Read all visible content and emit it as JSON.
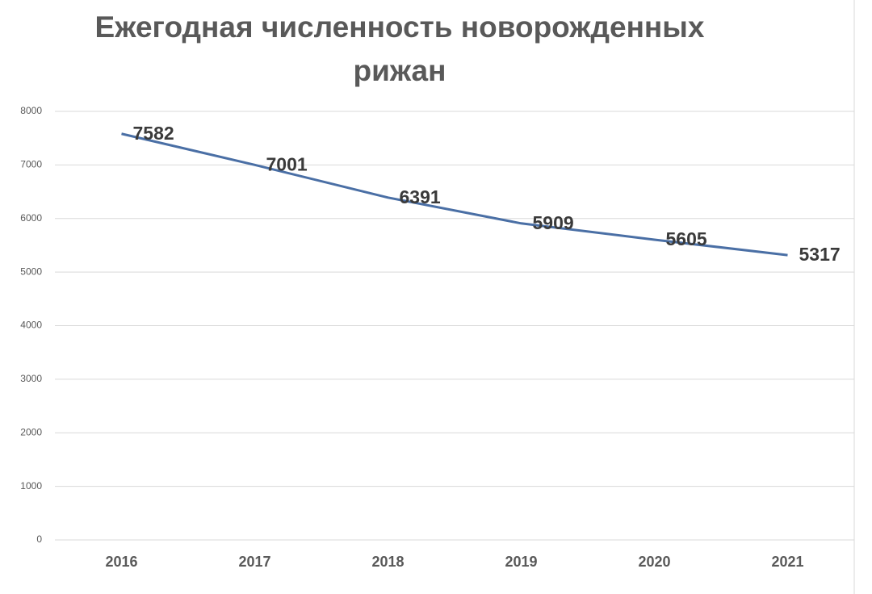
{
  "chart_data": {
    "type": "line",
    "title": [
      "Ежегодная численность новорожденных",
      "рижан"
    ],
    "categories": [
      "2016",
      "2017",
      "2018",
      "2019",
      "2020",
      "2021"
    ],
    "values": [
      7582,
      7001,
      6391,
      5909,
      5605,
      5317
    ],
    "color": "#4a6fa5",
    "ylim": [
      0,
      8000
    ],
    "yticks": [
      0,
      1000,
      2000,
      3000,
      4000,
      5000,
      6000,
      7000,
      8000
    ],
    "grid": true
  }
}
